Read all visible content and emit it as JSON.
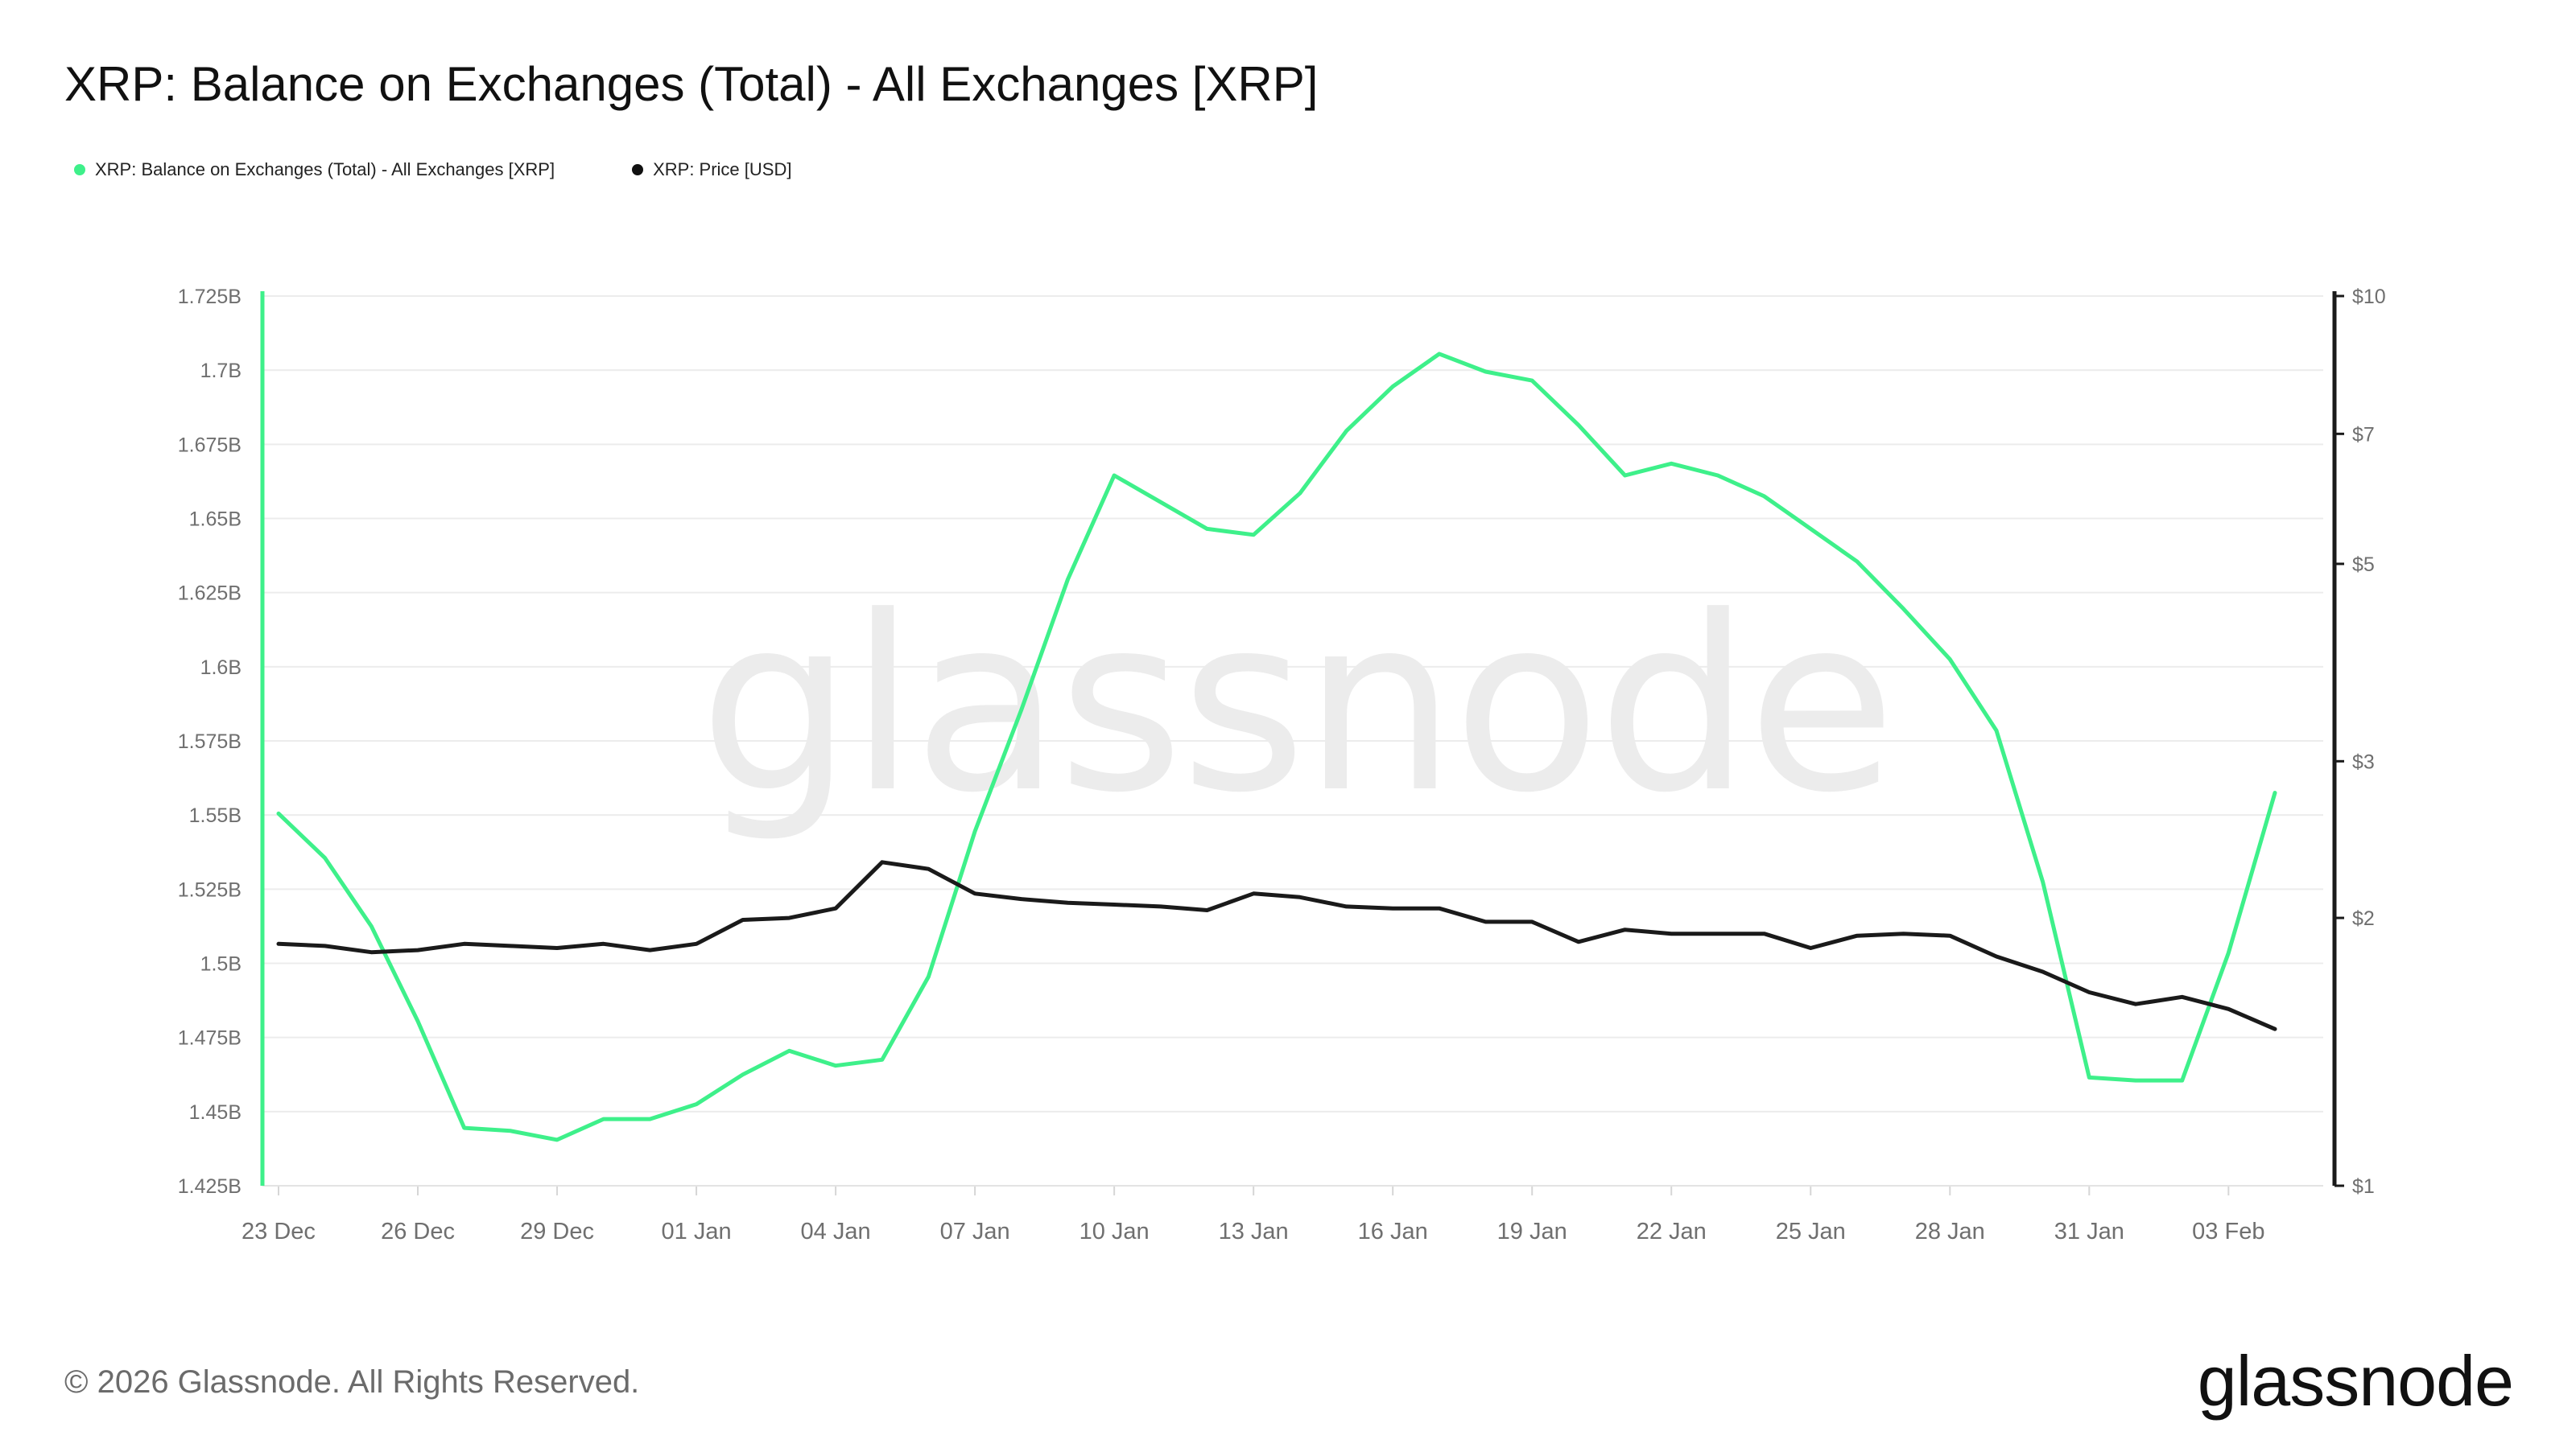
{
  "title": "XRP: Balance on Exchanges (Total) - All Exchanges [XRP]",
  "legend": [
    {
      "label": "XRP: Balance on Exchanges (Total) - All Exchanges [XRP]",
      "color": "#3ef08a"
    },
    {
      "label": "XRP: Price [USD]",
      "color": "#111111"
    }
  ],
  "watermark": "glassnode",
  "footer": "© 2026 Glassnode. All Rights Reserved.",
  "brand": "glassnode",
  "colors": {
    "balance": "#3ef08a",
    "price": "#1a1a1a",
    "grid": "#ececec",
    "tick": "#6f6f6f"
  },
  "chart_data": {
    "type": "line",
    "grid": true,
    "legend_position": "top-left",
    "x": [
      "23 Dec",
      "24 Dec",
      "25 Dec",
      "26 Dec",
      "27 Dec",
      "28 Dec",
      "29 Dec",
      "30 Dec",
      "31 Dec",
      "01 Jan",
      "02 Jan",
      "03 Jan",
      "04 Jan",
      "05 Jan",
      "06 Jan",
      "07 Jan",
      "08 Jan",
      "09 Jan",
      "10 Jan",
      "11 Jan",
      "12 Jan",
      "13 Jan",
      "14 Jan",
      "15 Jan",
      "16 Jan",
      "17 Jan",
      "18 Jan",
      "19 Jan",
      "20 Jan",
      "21 Jan",
      "22 Jan",
      "23 Jan",
      "24 Jan",
      "25 Jan",
      "26 Jan",
      "27 Jan",
      "28 Jan",
      "29 Jan",
      "30 Jan",
      "31 Jan",
      "01 Feb",
      "02 Feb",
      "03 Feb",
      "04 Feb"
    ],
    "x_tick_labels": [
      "23 Dec",
      "26 Dec",
      "29 Dec",
      "01 Jan",
      "04 Jan",
      "07 Jan",
      "10 Jan",
      "13 Jan",
      "16 Jan",
      "19 Jan",
      "22 Jan",
      "25 Jan",
      "28 Jan",
      "31 Jan",
      "03 Feb"
    ],
    "series": [
      {
        "name": "XRP: Balance on Exchanges (Total) - All Exchanges [XRP]",
        "axis": "left",
        "values": [
          1.5505,
          1.5355,
          1.5125,
          1.4805,
          1.4445,
          1.4435,
          1.4405,
          1.4475,
          1.4475,
          1.4525,
          1.4625,
          1.4705,
          1.4655,
          1.4675,
          1.4955,
          1.5445,
          1.5855,
          1.6295,
          1.6645,
          1.6555,
          1.6465,
          1.6445,
          1.6585,
          1.6795,
          1.6945,
          1.7055,
          1.6995,
          1.6965,
          1.6815,
          1.6645,
          1.6685,
          1.6645,
          1.6575,
          1.6465,
          1.6355,
          1.6195,
          1.6025,
          1.5785,
          1.5275,
          1.4615,
          1.4605,
          1.4605,
          1.5035,
          1.5575
        ]
      },
      {
        "name": "XRP: Price [USD]",
        "axis": "right",
        "values": [
          1.87,
          1.86,
          1.83,
          1.84,
          1.87,
          1.86,
          1.85,
          1.87,
          1.84,
          1.87,
          1.99,
          2.0,
          2.05,
          2.31,
          2.27,
          2.13,
          2.1,
          2.08,
          2.07,
          2.06,
          2.04,
          2.13,
          2.11,
          2.06,
          2.05,
          2.05,
          1.98,
          1.98,
          1.88,
          1.94,
          1.92,
          1.92,
          1.92,
          1.85,
          1.91,
          1.92,
          1.91,
          1.81,
          1.74,
          1.65,
          1.6,
          1.63,
          1.58,
          1.5
        ]
      }
    ],
    "y_left": {
      "ylim": [
        1.425,
        1.725
      ],
      "ticks": [
        1.425,
        1.45,
        1.475,
        1.5,
        1.525,
        1.55,
        1.575,
        1.6,
        1.625,
        1.65,
        1.675,
        1.7,
        1.725
      ],
      "tick_labels": [
        "1.425B",
        "1.45B",
        "1.475B",
        "1.5B",
        "1.525B",
        "1.55B",
        "1.575B",
        "1.6B",
        "1.625B",
        "1.65B",
        "1.675B",
        "1.7B",
        "1.725B"
      ]
    },
    "y_right": {
      "scale": "log",
      "ylim": [
        1,
        10
      ],
      "ticks": [
        1,
        2,
        3,
        5,
        7,
        10
      ],
      "tick_labels": [
        "$1",
        "$2",
        "$3",
        "$5",
        "$7",
        "$10"
      ]
    }
  }
}
